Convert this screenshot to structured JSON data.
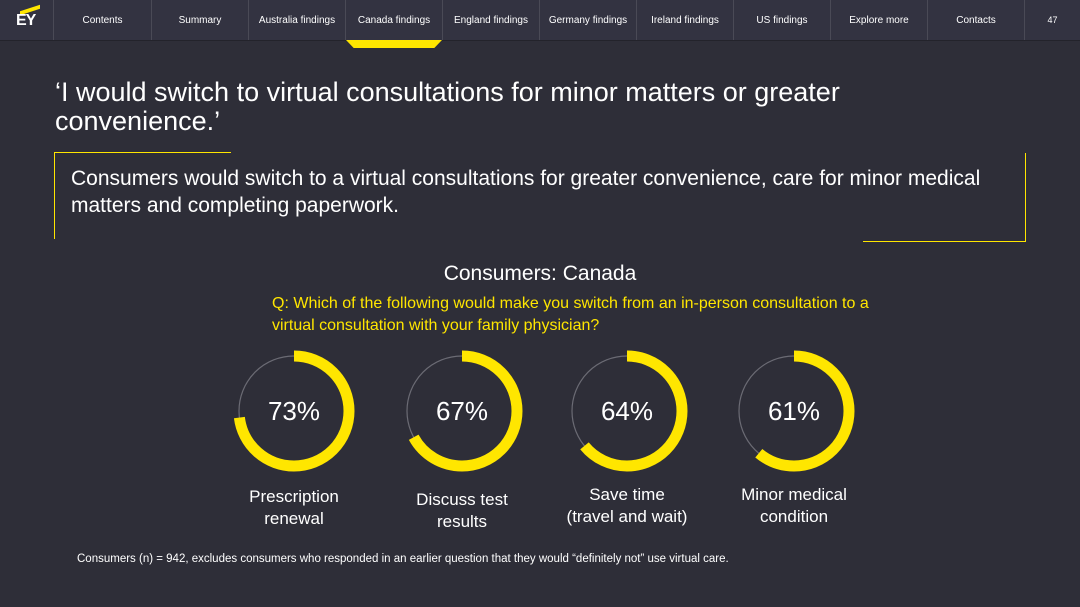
{
  "nav": {
    "logo": "EY",
    "items": [
      {
        "label": "Contents",
        "width": 98
      },
      {
        "label": "Summary",
        "width": 97
      },
      {
        "label": "Australia findings",
        "width": 97
      },
      {
        "label": "Canada findings",
        "width": 97,
        "active": true
      },
      {
        "label": "England findings",
        "width": 97
      },
      {
        "label": "Germany findings",
        "width": 97
      },
      {
        "label": "Ireland findings",
        "width": 97
      },
      {
        "label": "US findings",
        "width": 97
      },
      {
        "label": "Explore more",
        "width": 97
      },
      {
        "label": "Contacts",
        "width": 97
      }
    ],
    "page_number": "47"
  },
  "headline": "‘I would switch to virtual consultations for minor matters or greater convenience.’",
  "summary": "Consumers would switch to a virtual consultations for greater convenience, care for minor medical matters and completing paperwork.",
  "question": "Q: Which of the following would make you switch from an in-person consultation to a virtual consultation with your family physician?",
  "footnote": "Consumers (n) = 942, excludes consumers who responded in an earlier question that they would “definitely not” use virtual care.",
  "colors": {
    "accent": "#ffe600",
    "background": "#2e2e38",
    "track": "#6b6b74"
  },
  "chart_data": {
    "type": "pie",
    "title": "Consumers: Canada",
    "unit": "%",
    "categories": [
      "Prescription renewal",
      "Discuss test results",
      "Save time (travel and wait)",
      "Minor medical condition"
    ],
    "label_lines": [
      [
        "Prescription",
        "renewal"
      ],
      [
        "Discuss test",
        "results"
      ],
      [
        "Save time",
        "(travel and wait)"
      ],
      [
        "Minor medical",
        "condition"
      ]
    ],
    "values": [
      73,
      67,
      64,
      61
    ],
    "value_labels": [
      "73%",
      "67%",
      "64%",
      "61%"
    ]
  }
}
